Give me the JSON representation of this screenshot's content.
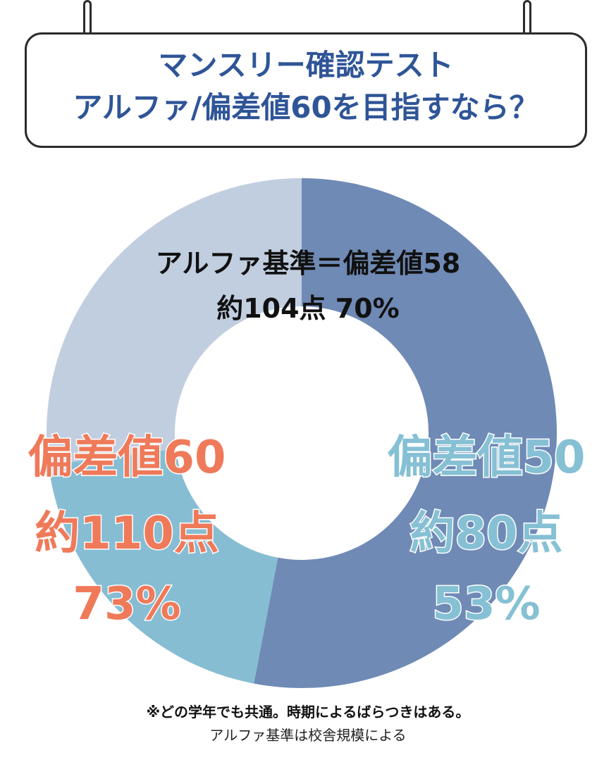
{
  "title": {
    "line1": "マンスリー確認テスト",
    "line2": "アルファ/偏差値60を目指すなら？"
  },
  "center_label": {
    "line1": "アルファ基準＝偏差値58",
    "line2": "約104点 70%"
  },
  "left_label": {
    "line1": "偏差値60",
    "line2": "約110点",
    "line3": "73%"
  },
  "right_label": {
    "line1": "偏差値50",
    "line2": "約80点",
    "line3": "53%"
  },
  "notes": {
    "line1": "※どの学年でも共通。時期によるばらつきはある。",
    "line2": "アルファ基準は校舎規模による"
  },
  "chart_data": {
    "type": "pie",
    "donut": true,
    "start_angle_deg": 0,
    "slices": [
      {
        "label": "偏差値50",
        "value": 53,
        "color": "#6f8ab5"
      },
      {
        "label": "偏差値60",
        "value": 20,
        "color": "#86bdd3"
      },
      {
        "label": "",
        "value": 27,
        "color": "#c1cee0"
      }
    ]
  }
}
